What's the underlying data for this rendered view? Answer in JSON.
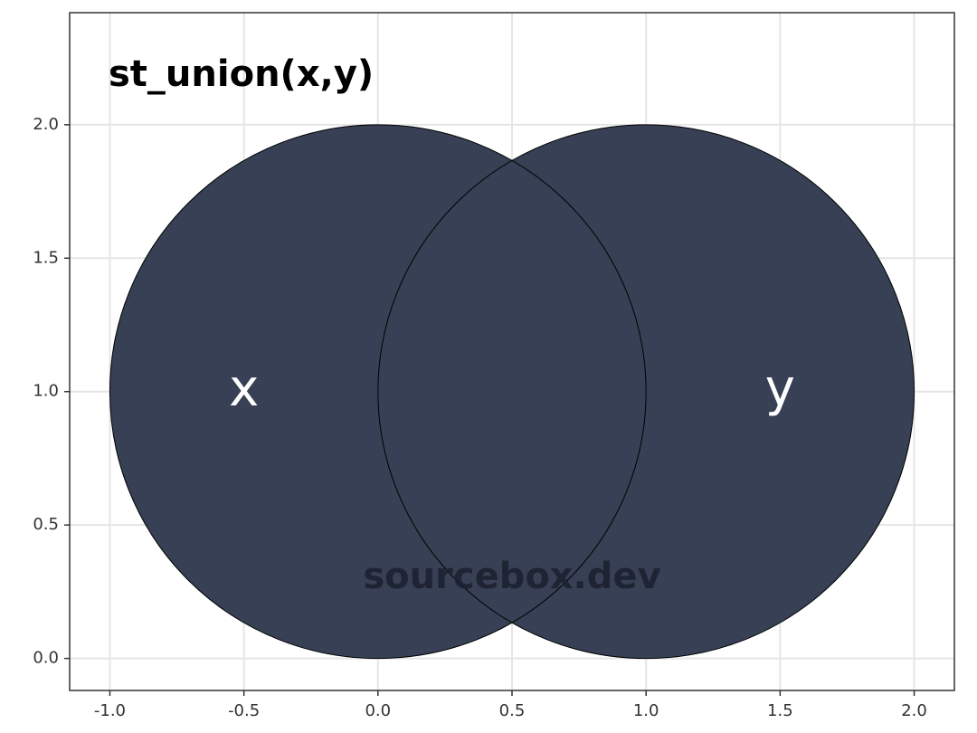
{
  "chart_data": {
    "type": "diagram",
    "title": "st_union(x,y)",
    "xlim": [
      -1.15,
      2.15
    ],
    "ylim": [
      -0.12,
      2.42
    ],
    "x_ticks": [
      {
        "value": -1.0,
        "label": "-1.0"
      },
      {
        "value": -0.5,
        "label": "-0.5"
      },
      {
        "value": 0.0,
        "label": "0.0"
      },
      {
        "value": 0.5,
        "label": "0.5"
      },
      {
        "value": 1.0,
        "label": "1.0"
      },
      {
        "value": 1.5,
        "label": "1.5"
      },
      {
        "value": 2.0,
        "label": "2.0"
      }
    ],
    "y_ticks": [
      {
        "value": 0.0,
        "label": "0.0"
      },
      {
        "value": 0.5,
        "label": "0.5"
      },
      {
        "value": 1.0,
        "label": "1.0"
      },
      {
        "value": 1.5,
        "label": "1.5"
      },
      {
        "value": 2.0,
        "label": "2.0"
      }
    ],
    "grid": true,
    "shapes": [
      {
        "name": "x",
        "label": "x",
        "cx": 0.0,
        "cy": 1.0,
        "r": 1.0,
        "label_x": -0.5,
        "label_y": 1.0
      },
      {
        "name": "y",
        "label": "y",
        "cx": 1.0,
        "cy": 1.0,
        "r": 1.0,
        "label_x": 1.5,
        "label_y": 1.0
      }
    ],
    "fill_color": "#374054",
    "outline_color": "#000000",
    "grid_color": "#e5e5e5",
    "watermark": "sourcebox.dev",
    "watermark_x": 0.5,
    "watermark_y": 0.3
  }
}
